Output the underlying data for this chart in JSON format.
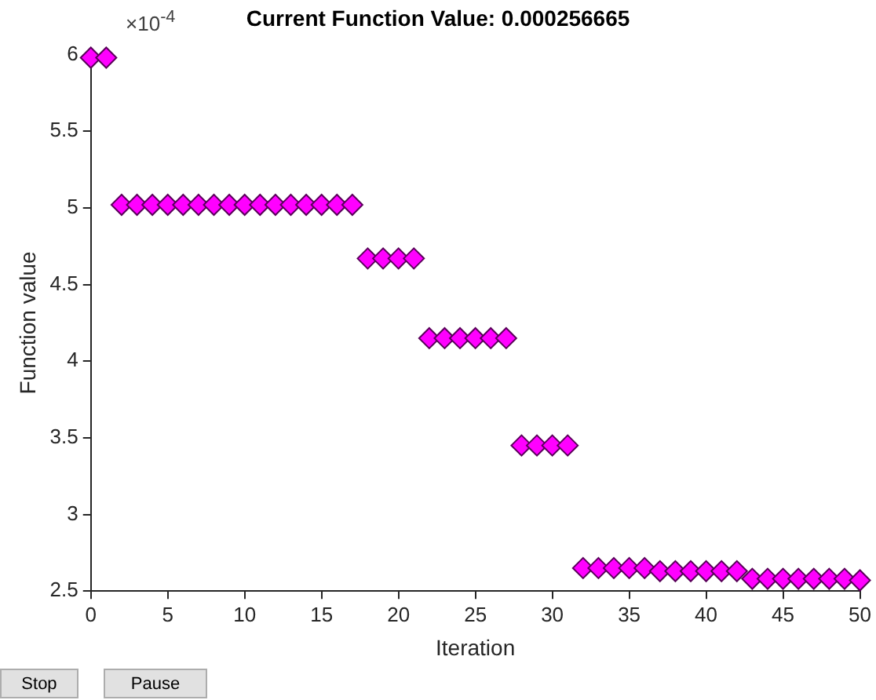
{
  "chart_data": {
    "type": "scatter",
    "title": "Current Function Value: 0.000256665",
    "xlabel": "Iteration",
    "ylabel": "Function value",
    "annotations": [
      "×10$^{-4}$",
      "Stop",
      "Pause"
    ],
    "x": [
      0,
      1,
      2,
      3,
      4,
      5,
      6,
      7,
      8,
      9,
      10,
      11,
      12,
      13,
      14,
      15,
      16,
      17,
      18,
      19,
      20,
      21,
      22,
      23,
      24,
      25,
      26,
      27,
      28,
      29,
      30,
      31,
      32,
      33,
      34,
      35,
      36,
      37,
      38,
      39,
      40,
      41,
      42,
      43,
      44,
      45,
      46,
      47,
      48,
      49,
      50
    ],
    "series": [
      {
        "color": "#ff00ff",
        "values": [
          5.98,
          5.98,
          5.02,
          5.02,
          5.02,
          5.02,
          5.02,
          5.02,
          5.02,
          5.02,
          5.02,
          5.02,
          5.02,
          5.02,
          5.02,
          5.02,
          5.02,
          5.02,
          4.67,
          4.67,
          4.67,
          4.67,
          4.15,
          4.15,
          4.15,
          4.15,
          4.15,
          4.15,
          3.45,
          3.45,
          3.45,
          3.45,
          2.65,
          2.65,
          2.65,
          2.65,
          2.65,
          2.63,
          2.63,
          2.63,
          2.63,
          2.63,
          2.63,
          2.58,
          2.58,
          2.58,
          2.58,
          2.58,
          2.58,
          2.58,
          2.57
        ]
      }
    ],
    "xlim": [
      0,
      50
    ],
    "xticks": [
      0,
      5,
      10,
      15,
      20,
      25,
      30,
      35,
      40,
      45,
      50
    ],
    "ylim": [
      2.5,
      6
    ],
    "yticks": [
      2.5,
      3,
      3.5,
      4,
      4.5,
      5,
      5.5,
      6
    ],
    "grid": false,
    "legend": false,
    "marker": "diamond"
  }
}
